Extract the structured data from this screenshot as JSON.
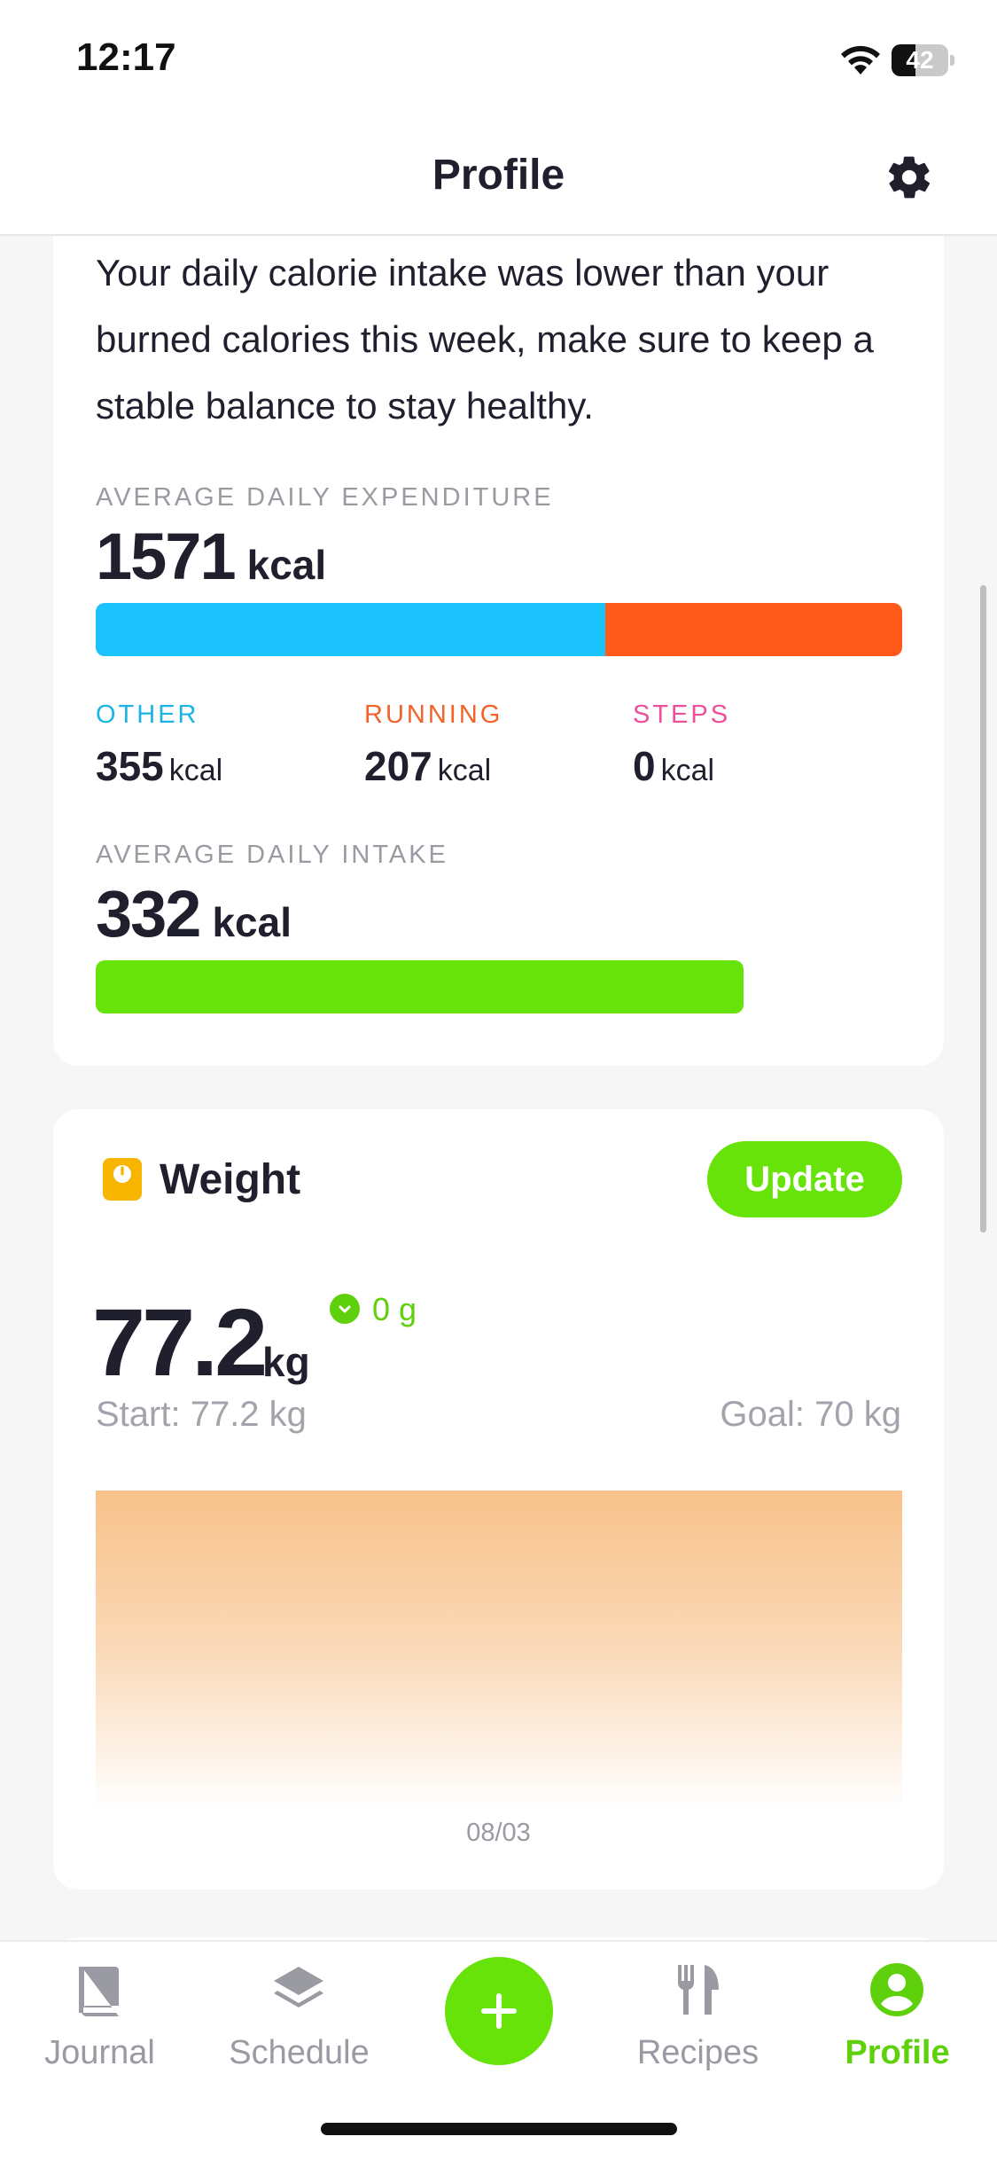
{
  "status_bar": {
    "time": "12:17",
    "battery_level": 42,
    "battery_text": "42"
  },
  "header": {
    "title": "Profile"
  },
  "balance": {
    "message": "Your daily calorie intake was lower than your burned calories this week, make sure to keep a stable balance to stay healthy.",
    "expenditure": {
      "label": "AVERAGE DAILY EXPENDITURE",
      "value": "1571",
      "unit": "kcal",
      "segments": [
        {
          "name": "OTHER",
          "fraction": 0.632,
          "color": "#1bc2fb"
        },
        {
          "name": "RUNNING",
          "fraction": 0.368,
          "color": "#ff5a1a"
        }
      ]
    },
    "breakdown": [
      {
        "label": "OTHER",
        "value": "355",
        "unit": "kcal",
        "color": "#1bb4e6"
      },
      {
        "label": "RUNNING",
        "value": "207",
        "unit": "kcal",
        "color": "#f2622a"
      },
      {
        "label": "STEPS",
        "value": "0",
        "unit": "kcal",
        "color": "#ee4f9b"
      }
    ],
    "intake": {
      "label": "AVERAGE DAILY INTAKE",
      "value": "332",
      "unit": "kcal",
      "fraction": 0.803,
      "color": "#67e30a"
    }
  },
  "weight": {
    "title": "Weight",
    "update_label": "Update",
    "value": "77.2",
    "unit": "kg",
    "change": "0 g",
    "start": "Start: 77.2 kg",
    "goal": "Goal: 70 kg",
    "chart_date": "08/03"
  },
  "tabs": [
    {
      "label": "Journal",
      "icon": "book-icon",
      "active": false
    },
    {
      "label": "Schedule",
      "icon": "layers-icon",
      "active": false
    },
    {
      "label": "Recipes",
      "icon": "fork-knife-icon",
      "active": false
    },
    {
      "label": "Profile",
      "icon": "user-circle-icon",
      "active": true
    }
  ],
  "colors": {
    "accent": "#67e30a",
    "text": "#1f1f2e",
    "muted": "#9a9aa3"
  }
}
